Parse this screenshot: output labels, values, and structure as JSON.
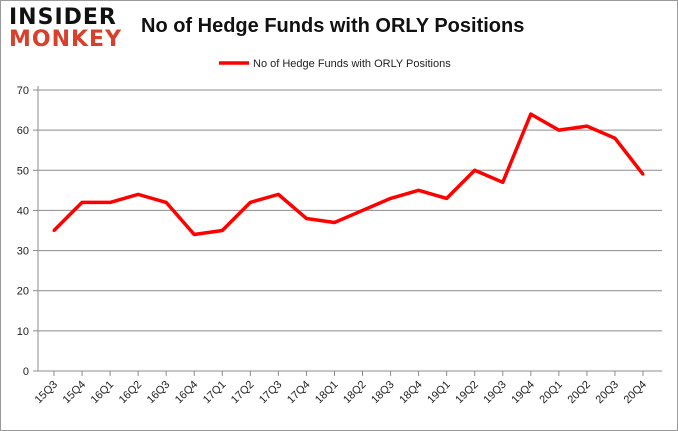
{
  "logo": {
    "line1": "INSIDER",
    "line2": "MONKEY"
  },
  "chart_data": {
    "type": "line",
    "title": "No of Hedge Funds with ORLY Positions",
    "categories": [
      "15Q3",
      "15Q4",
      "16Q1",
      "16Q2",
      "16Q3",
      "16Q4",
      "17Q1",
      "17Q2",
      "17Q3",
      "17Q4",
      "18Q1",
      "18Q2",
      "18Q3",
      "18Q4",
      "19Q1",
      "19Q2",
      "19Q3",
      "19Q4",
      "20Q1",
      "20Q2",
      "20Q3",
      "20Q4"
    ],
    "series": [
      {
        "name": "No of Hedge Funds with ORLY Positions",
        "color": "#ff0000",
        "values": [
          35,
          42,
          42,
          44,
          42,
          34,
          35,
          42,
          44,
          38,
          37,
          40,
          43,
          45,
          43,
          50,
          47,
          64,
          60,
          61,
          58,
          49
        ]
      }
    ],
    "ylim": [
      0,
      70
    ],
    "yticks": [
      0,
      10,
      20,
      30,
      40,
      50,
      60,
      70
    ],
    "grid": true,
    "legend_placement": "top-center"
  }
}
